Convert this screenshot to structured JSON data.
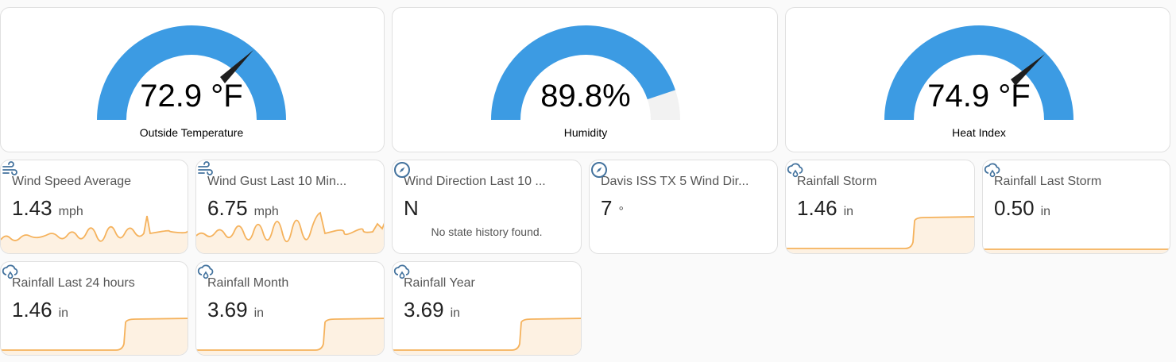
{
  "gauges": [
    {
      "value": "72.9 °F",
      "name": "Outside Temperature"
    },
    {
      "value": "89.8%",
      "name": "Humidity"
    },
    {
      "value": "74.9 °F",
      "name": "Heat Index"
    }
  ],
  "tiles": [
    {
      "name": "Wind Speed Average",
      "value": "1.43",
      "unit": "mph"
    },
    {
      "name": "Wind Gust Last 10 Min...",
      "value": "6.75",
      "unit": "mph"
    },
    {
      "name": "Wind Direction Last 10 ...",
      "value": "N",
      "note": "No state history found."
    },
    {
      "name": "Davis ISS TX 5 Wind Dir...",
      "value": "7",
      "unit": "°"
    },
    {
      "name": "Rainfall Storm",
      "value": "1.46",
      "unit": "in"
    },
    {
      "name": "Rainfall Last Storm",
      "value": "0.50",
      "unit": "in"
    },
    {
      "name": "Rainfall Last 24 hours",
      "value": "1.46",
      "unit": "in"
    },
    {
      "name": "Rainfall Month",
      "value": "3.69",
      "unit": "in"
    },
    {
      "name": "Rainfall Year",
      "value": "3.69",
      "unit": "in"
    }
  ]
}
